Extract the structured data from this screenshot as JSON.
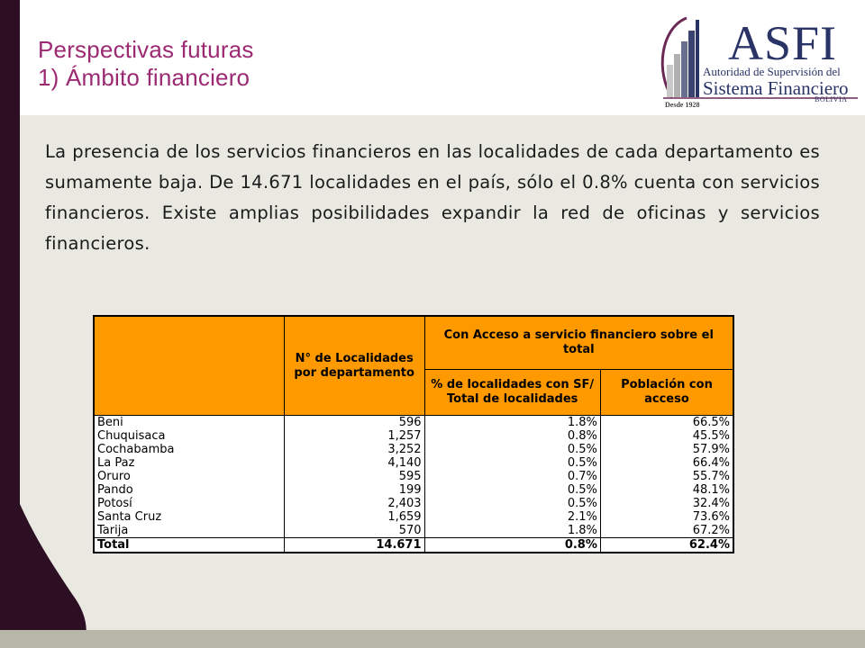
{
  "header": {
    "title_line1": "Perspectivas futuras",
    "title_line2": "1) Ámbito financiero"
  },
  "logo": {
    "name": "ASFI",
    "subtitle1": "Autoridad de Supervisión del",
    "subtitle2": "Sistema Financiero",
    "country": "BOLIVIA",
    "since": "Desde 1928",
    "colors": {
      "navy": "#2a3366",
      "purple": "#6b2a55",
      "gray": "#9a9a9a"
    }
  },
  "body": {
    "paragraph": "La presencia de los servicios financieros en las localidades de cada departamento es sumamente baja. De 14.671 localidades en el país, sólo el 0.8% cuenta con servicios financieros. Existe amplias posibilidades expandir la red de oficinas y servicios financieros."
  },
  "table": {
    "headers": {
      "col1": "",
      "col2": "N° de Localidades por departamento",
      "group": "Con Acceso a servicio financiero sobre el total",
      "col3": "% de localidades con SF/ Total de localidades",
      "col4": "Población con acceso"
    },
    "rows": [
      {
        "dept": "Beni",
        "localidades": "596",
        "pct_sf": "1.8%",
        "poblacion": "66.5%"
      },
      {
        "dept": "Chuquisaca",
        "localidades": "1,257",
        "pct_sf": "0.8%",
        "poblacion": "45.5%"
      },
      {
        "dept": "Cochabamba",
        "localidades": "3,252",
        "pct_sf": "0.5%",
        "poblacion": "57.9%"
      },
      {
        "dept": "La Paz",
        "localidades": "4,140",
        "pct_sf": "0.5%",
        "poblacion": "66.4%"
      },
      {
        "dept": "Oruro",
        "localidades": "595",
        "pct_sf": "0.7%",
        "poblacion": "55.7%"
      },
      {
        "dept": "Pando",
        "localidades": "199",
        "pct_sf": "0.5%",
        "poblacion": "48.1%"
      },
      {
        "dept": "Potosí",
        "localidades": "2,403",
        "pct_sf": "0.5%",
        "poblacion": "32.4%"
      },
      {
        "dept": "Santa Cruz",
        "localidades": "1,659",
        "pct_sf": "2.1%",
        "poblacion": "73.6%"
      },
      {
        "dept": "Tarija",
        "localidades": "570",
        "pct_sf": "1.8%",
        "poblacion": "67.2%"
      }
    ],
    "total": {
      "dept": "Total",
      "localidades": "14.671",
      "pct_sf": "0.8%",
      "poblacion": "62.4%"
    },
    "header_color": "#ff9900"
  },
  "theme": {
    "title_color": "#9c2a72",
    "panel_color": "#e9e9e2",
    "dark_band": "#2d0f24"
  }
}
